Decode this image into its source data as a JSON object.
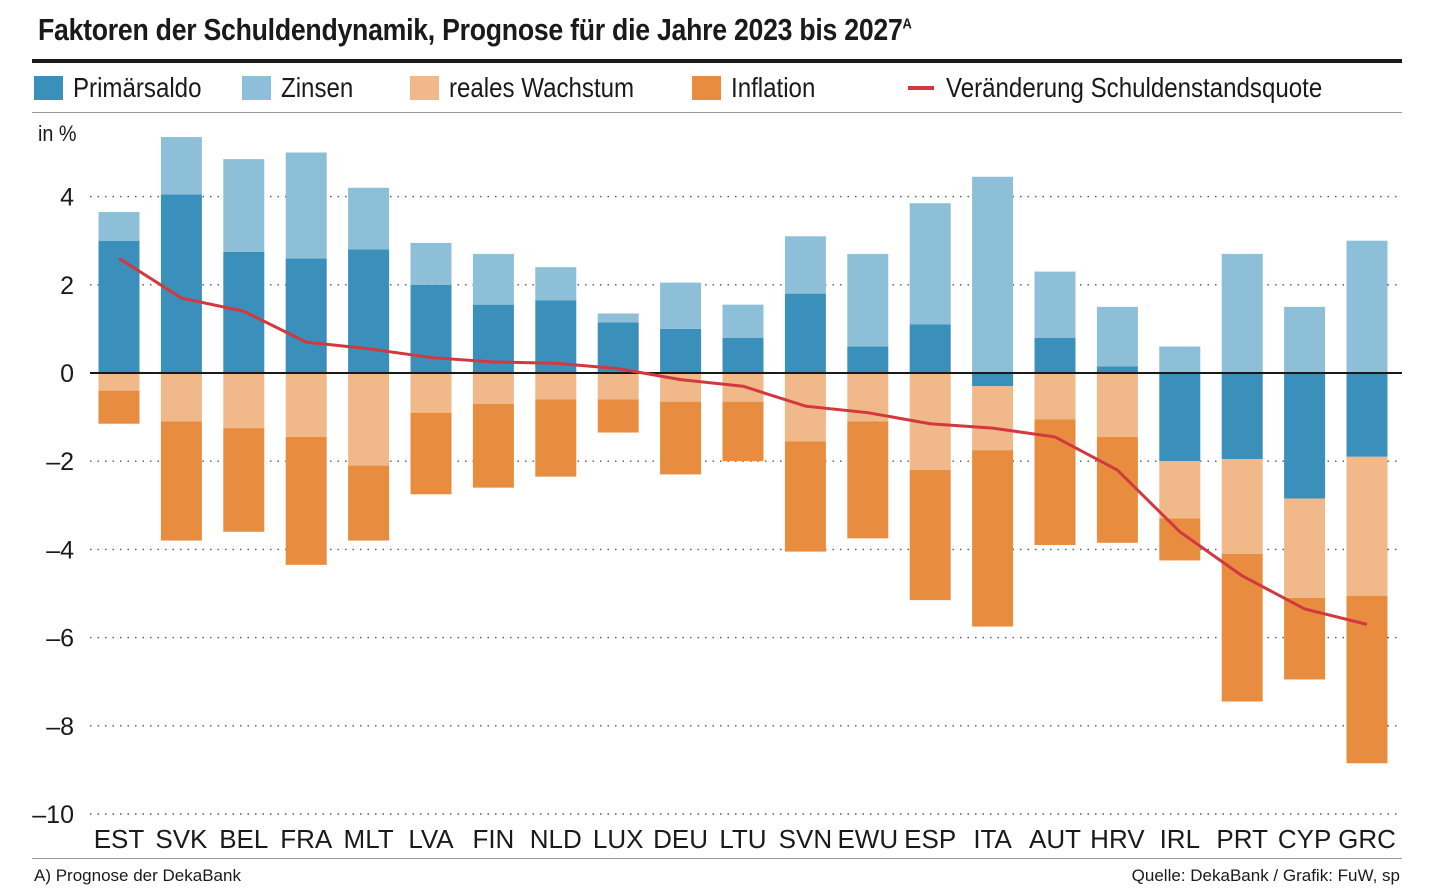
{
  "header": {
    "title": "Faktoren der Schuldendynamik, Prognose für die Jahre 2023 bis 2027",
    "title_sup": "A"
  },
  "legend": {
    "primaersaldo": "Primärsaldo",
    "zinsen": "Zinsen",
    "reales_wachstum": "reales Wachstum",
    "inflation": "Inflation",
    "veraenderung": "Veränderung Schuldenstandsquote"
  },
  "unit_label": "in %",
  "footer": {
    "note": "A) Prognose der DekaBank",
    "source": "Quelle: DekaBank / Grafik: FuW, sp"
  },
  "colors": {
    "primaersaldo": "#3a8fbb",
    "zinsen": "#8dc0d8",
    "reales_wachstum": "#f1b98a",
    "inflation": "#e88d3f",
    "line": "#d2393f"
  },
  "chart_data": {
    "type": "bar",
    "stacked": true,
    "title": "Faktoren der Schuldendynamik, Prognose für die Jahre 2023 bis 2027",
    "ylabel": "in %",
    "ylim": [
      -10,
      5.6
    ],
    "yticks": [
      4,
      2,
      0,
      -2,
      -4,
      -6,
      -8,
      -10
    ],
    "ytick_labels": [
      "4",
      "2",
      "0",
      "–2",
      "–4",
      "–6",
      "–8",
      "–10"
    ],
    "grid": true,
    "legend_position": "top",
    "categories": [
      "EST",
      "SVK",
      "BEL",
      "FRA",
      "MLT",
      "LVA",
      "FIN",
      "NLD",
      "LUX",
      "DEU",
      "LTU",
      "SVN",
      "EWU",
      "ESP",
      "ITA",
      "AUT",
      "HRV",
      "IRL",
      "PRT",
      "CYP",
      "GRC"
    ],
    "series": [
      {
        "name": "Primärsaldo",
        "values": [
          3.0,
          4.05,
          2.75,
          2.6,
          2.8,
          2.0,
          1.55,
          1.65,
          1.15,
          1.0,
          0.8,
          1.8,
          0.6,
          1.1,
          -0.3,
          0.8,
          0.15,
          -2.0,
          -1.95,
          -2.85,
          -1.9
        ]
      },
      {
        "name": "Zinsen",
        "values": [
          0.65,
          1.3,
          2.1,
          2.4,
          1.4,
          0.95,
          1.15,
          0.75,
          0.2,
          1.05,
          0.75,
          1.3,
          2.1,
          2.75,
          4.45,
          1.5,
          1.35,
          0.6,
          2.7,
          1.5,
          3.0
        ]
      },
      {
        "name": "reales Wachstum",
        "values": [
          -0.4,
          -1.1,
          -1.25,
          -1.45,
          -2.1,
          -0.9,
          -0.7,
          -0.6,
          -0.6,
          -0.65,
          -0.65,
          -1.55,
          -1.1,
          -2.2,
          -1.45,
          -1.05,
          -1.45,
          -1.3,
          -2.15,
          -2.25,
          -3.15
        ]
      },
      {
        "name": "Inflation",
        "values": [
          -0.75,
          -2.7,
          -2.35,
          -2.9,
          -1.7,
          -1.85,
          -1.9,
          -1.75,
          -0.75,
          -1.65,
          -1.35,
          -2.5,
          -2.65,
          -2.95,
          -4.0,
          -2.85,
          -2.4,
          -0.95,
          -3.35,
          -1.85,
          -3.8
        ]
      },
      {
        "name": "Veränderung Schuldenstandsquote",
        "type": "line",
        "values": [
          2.6,
          1.7,
          1.4,
          0.7,
          0.55,
          0.35,
          0.25,
          0.22,
          0.1,
          -0.15,
          -0.3,
          -0.75,
          -0.9,
          -1.15,
          -1.25,
          -1.45,
          -2.2,
          -3.6,
          -4.6,
          -5.35,
          -5.7
        ]
      }
    ]
  }
}
